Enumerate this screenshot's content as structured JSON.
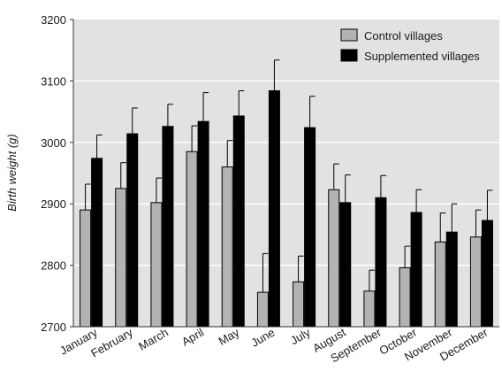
{
  "chart_data": {
    "type": "bar",
    "ylabel": "Birth weight (g)",
    "xlabel": "",
    "ylim": [
      2700,
      3200
    ],
    "yticks": [
      2700,
      2800,
      2900,
      3000,
      3100,
      3200
    ],
    "grid": true,
    "legend_position": "top-right",
    "categories": [
      "January",
      "February",
      "March",
      "April",
      "May",
      "June",
      "July",
      "August",
      "September",
      "October",
      "November",
      "December"
    ],
    "series": [
      {
        "name": "Control villages",
        "color": "#b3b3b3",
        "values": [
          2890,
          2925,
          2902,
          2985,
          2960,
          2756,
          2773,
          2923,
          2758,
          2796,
          2838,
          2846
        ],
        "error": [
          42,
          42,
          40,
          42,
          43,
          63,
          42,
          42,
          34,
          35,
          47,
          44
        ]
      },
      {
        "name": "Supplemented villages",
        "color": "#000000",
        "values": [
          2974,
          3014,
          3026,
          3034,
          3043,
          3084,
          3024,
          2902,
          2910,
          2886,
          2854,
          2873
        ],
        "error": [
          38,
          42,
          36,
          47,
          41,
          50,
          51,
          45,
          36,
          37,
          46,
          49
        ]
      }
    ]
  },
  "colors": {
    "plot_background": "#e2e2e2",
    "gridline": "#ffffff"
  }
}
